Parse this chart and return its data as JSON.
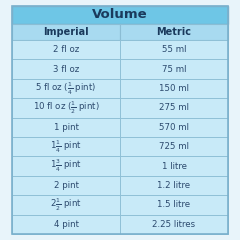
{
  "title": "Volume",
  "col_headers": [
    "Imperial",
    "Metric"
  ],
  "rows": [
    [
      "2 fl oz",
      "55 ml"
    ],
    [
      "3 fl oz",
      "75 ml"
    ],
    [
      "5 fl oz ($\\frac{1}{4}$ pint)",
      "150 ml"
    ],
    [
      "10 fl oz ($\\frac{1}{2}$ pint)",
      "275 ml"
    ],
    [
      "1 pint",
      "570 ml"
    ],
    [
      "1$\\frac{1}{4}$ pint",
      "725 ml"
    ],
    [
      "1$\\frac{3}{4}$ pint",
      "1 litre"
    ],
    [
      "2 pint",
      "1.2 litre"
    ],
    [
      "2$\\frac{1}{2}$ pint",
      "1.5 litre"
    ],
    [
      "4 pint",
      "2.25 litres"
    ]
  ],
  "title_bg": "#6ec6e6",
  "header_bg": "#a8daf0",
  "row_bg": "#c8eaf8",
  "border_color": "#8bbdd4",
  "title_color": "#1a3a5c",
  "header_color": "#1a3a5c",
  "cell_color": "#2c4a6e",
  "outer_border": "#7ab0cc",
  "title_fontsize": 9.5,
  "header_fontsize": 7,
  "cell_fontsize": 6.2,
  "fig_bg": "#e8f4fa"
}
